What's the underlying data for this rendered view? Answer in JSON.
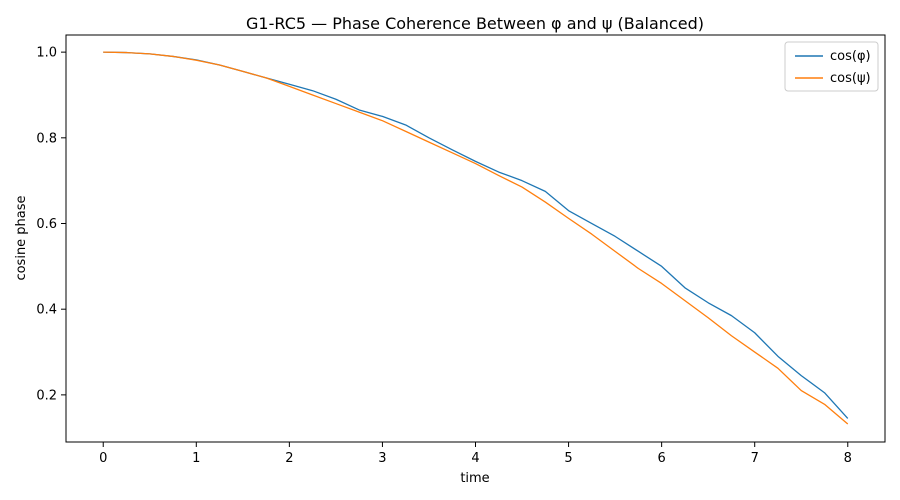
{
  "chart_data": {
    "type": "line",
    "title": "G1-RC5 — Phase Coherence Between φ and ψ (Balanced)",
    "xlabel": "time",
    "ylabel": "cosine phase",
    "xlim": [
      -0.4,
      8.4
    ],
    "ylim": [
      0.09,
      1.04
    ],
    "xticks": [
      "0",
      "1",
      "2",
      "3",
      "4",
      "5",
      "6",
      "7",
      "8"
    ],
    "yticks": [
      "0.2",
      "0.4",
      "0.6",
      "0.8",
      "1.0"
    ],
    "grid": false,
    "legend": "top-right",
    "series": [
      {
        "name": "cos(φ)",
        "color": "#1f77b4",
        "x": [
          0,
          0.25,
          0.5,
          0.75,
          1.0,
          1.25,
          1.5,
          1.75,
          2.0,
          2.25,
          2.5,
          2.75,
          3.0,
          3.25,
          3.5,
          3.75,
          4.0,
          4.25,
          4.5,
          4.75,
          5.0,
          5.25,
          5.5,
          5.75,
          6.0,
          6.25,
          6.5,
          6.75,
          7.0,
          7.25,
          7.5,
          7.75,
          8.0
        ],
        "y": [
          1.0,
          0.999,
          0.996,
          0.99,
          0.982,
          0.97,
          0.955,
          0.94,
          0.925,
          0.91,
          0.89,
          0.865,
          0.85,
          0.83,
          0.8,
          0.772,
          0.745,
          0.72,
          0.7,
          0.675,
          0.63,
          0.6,
          0.57,
          0.535,
          0.5,
          0.45,
          0.415,
          0.385,
          0.345,
          0.29,
          0.245,
          0.205,
          0.145
        ]
      },
      {
        "name": "cos(ψ)",
        "color": "#ff7f0e",
        "x": [
          0,
          0.25,
          0.5,
          0.75,
          1.0,
          1.25,
          1.5,
          1.75,
          2.0,
          2.25,
          2.5,
          2.75,
          3.0,
          3.25,
          3.5,
          3.75,
          4.0,
          4.25,
          4.5,
          4.75,
          5.0,
          5.25,
          5.5,
          5.75,
          6.0,
          6.25,
          6.5,
          6.75,
          7.0,
          7.25,
          7.5,
          7.75,
          8.0
        ],
        "y": [
          1.0,
          0.999,
          0.996,
          0.99,
          0.981,
          0.97,
          0.955,
          0.94,
          0.92,
          0.9,
          0.88,
          0.86,
          0.84,
          0.815,
          0.79,
          0.765,
          0.74,
          0.712,
          0.685,
          0.65,
          0.612,
          0.575,
          0.535,
          0.495,
          0.46,
          0.42,
          0.38,
          0.338,
          0.3,
          0.262,
          0.21,
          0.178,
          0.132
        ]
      }
    ]
  }
}
